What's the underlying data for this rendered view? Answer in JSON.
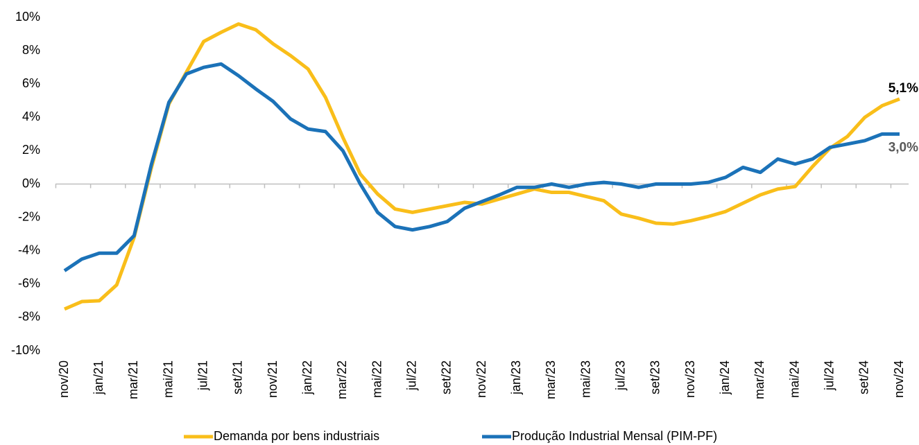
{
  "chart_data": {
    "type": "line",
    "categories": [
      "nov/20",
      null,
      "jan/21",
      null,
      "mar/21",
      null,
      "mai/21",
      null,
      "jul/21",
      null,
      "set/21",
      null,
      "nov/21",
      null,
      "jan/22",
      null,
      "mar/22",
      null,
      "mai/22",
      null,
      "jul/22",
      null,
      "set/22",
      null,
      "nov/22",
      null,
      "jan/23",
      null,
      "mar/23",
      null,
      "mai/23",
      null,
      "jul/23",
      null,
      "set/23",
      null,
      "nov/23",
      null,
      "jan/24",
      null,
      "mar/24",
      null,
      "mai/24",
      null,
      "jul/24",
      null,
      "set/24",
      null,
      "nov/24"
    ],
    "series": [
      {
        "name": "Demanda por bens industriais",
        "color": "#F9BE1A",
        "values": [
          -7.5,
          -7.05,
          -7.0,
          -6.05,
          -3.2,
          1.0,
          4.8,
          6.7,
          8.55,
          9.1,
          9.6,
          9.25,
          8.4,
          7.7,
          6.9,
          5.2,
          2.8,
          0.6,
          -0.6,
          -1.5,
          -1.7,
          -1.5,
          -1.3,
          -1.1,
          -1.2,
          -0.9,
          -0.6,
          -0.3,
          -0.5,
          -0.5,
          -0.75,
          -1.0,
          -1.8,
          -2.05,
          -2.35,
          -2.4,
          -2.2,
          -1.95,
          -1.65,
          -1.15,
          -0.65,
          -0.3,
          -0.15,
          1.05,
          2.15,
          2.85,
          4.0,
          4.7,
          5.1
        ],
        "value_labels": [
          null,
          null,
          null,
          null,
          null,
          null,
          null,
          null,
          null,
          null,
          null,
          null,
          null,
          null,
          null,
          null,
          null,
          null,
          null,
          null,
          null,
          null,
          null,
          null,
          null,
          null,
          null,
          null,
          null,
          null,
          null,
          null,
          null,
          null,
          null,
          null,
          null,
          null,
          null,
          null,
          null,
          null,
          null,
          null,
          null,
          null,
          null,
          null,
          "5,1%"
        ]
      },
      {
        "name": "Produção Industrial Mensal (PIM-PF)",
        "color": "#1B72B8",
        "values": [
          -5.2,
          -4.5,
          -4.15,
          -4.15,
          -3.1,
          1.2,
          4.9,
          6.6,
          7.0,
          7.2,
          6.5,
          5.7,
          4.95,
          3.9,
          3.3,
          3.15,
          2.0,
          0.0,
          -1.7,
          -2.55,
          -2.75,
          -2.55,
          -2.25,
          -1.45,
          -1.05,
          -0.65,
          -0.2,
          -0.2,
          0.0,
          -0.2,
          0.0,
          0.1,
          0.0,
          -0.2,
          0.0,
          0.0,
          0.0,
          0.1,
          0.4,
          1.0,
          0.7,
          1.5,
          1.2,
          1.5,
          2.2,
          2.4,
          2.6,
          3.0,
          3.0
        ],
        "value_labels": [
          null,
          null,
          null,
          null,
          null,
          null,
          null,
          null,
          null,
          null,
          null,
          null,
          null,
          null,
          null,
          null,
          null,
          null,
          null,
          null,
          null,
          null,
          null,
          null,
          null,
          null,
          null,
          null,
          null,
          null,
          null,
          null,
          null,
          null,
          null,
          null,
          null,
          null,
          null,
          null,
          null,
          null,
          null,
          null,
          null,
          null,
          null,
          null,
          "3,0%"
        ]
      }
    ],
    "ylim": [
      -10,
      10
    ],
    "yticks": [
      {
        "value": -10,
        "label": "-10%"
      },
      {
        "value": -8,
        "label": "-8%"
      },
      {
        "value": -6,
        "label": "-6%"
      },
      {
        "value": -4,
        "label": "-4%"
      },
      {
        "value": -2,
        "label": "-2%"
      },
      {
        "value": 0,
        "label": "0%"
      },
      {
        "value": 2,
        "label": "2%"
      },
      {
        "value": 4,
        "label": "4%"
      },
      {
        "value": 6,
        "label": "6%"
      },
      {
        "value": 8,
        "label": "8%"
      },
      {
        "value": 10,
        "label": "10%"
      }
    ],
    "grid": false,
    "legend": "bottom"
  }
}
